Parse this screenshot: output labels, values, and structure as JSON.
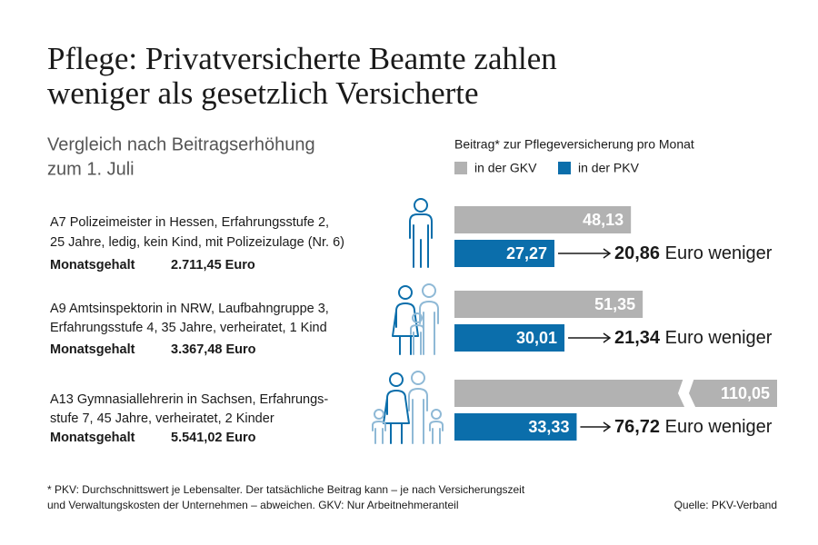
{
  "chart_data": {
    "type": "bar",
    "orientation": "horizontal",
    "title": [
      "Pflege: Privatversicherte Beamte zahlen",
      "weniger als gesetzlich Versicherte"
    ],
    "subtitle": [
      "Vergleich nach Beitragserhöhung",
      "zum 1. Juli"
    ],
    "legend_title": "Beitrag* zur Pflegeversicherung pro Monat",
    "categories": [
      [
        "A7 Polizeimeister in Hessen, Erfahrungsstufe 2,",
        "25 Jahre, ledig, kein Kind, mit Polizeizulage (Nr. 6)"
      ],
      [
        "A9 Amtsinspektorin in NRW, Laufbahngruppe 3,",
        "Erfahrungsstufe 4, 35 Jahre, verheiratet, 1 Kind"
      ],
      [
        "A13 Gymnasiallehrerin in Sachsen, Erfahrungs-",
        "stufe 7, 45 Jahre, verheiratet, 2 Kinder"
      ]
    ],
    "salary_label": "Monatsgehalt",
    "salaries": [
      "2.711,45 Euro",
      "3.367,48 Euro",
      "5.541,02 Euro"
    ],
    "differences": [
      "20,86",
      "21,34",
      "76,72"
    ],
    "difference_suffix": "Euro weniger",
    "series": [
      {
        "name": "in der GKV",
        "color": "#b2b2b2",
        "values": [
          48.13,
          51.35,
          110.05
        ],
        "value_labels": [
          "48,13",
          "51,35",
          "110,05"
        ]
      },
      {
        "name": "in der PKV",
        "color": "#0b6eab",
        "values": [
          27.27,
          30.01,
          33.33
        ],
        "value_labels": [
          "27,27",
          "30,01",
          "33,33"
        ]
      }
    ],
    "xlim": [
      0,
      88
    ],
    "axis_break": true,
    "footnote": [
      "* PKV: Durchschnittswert je Lebensalter. Der tatsächliche Beitrag kann – je nach Versicherungszeit",
      "und Verwaltungskosten der Unternehmen – abweichen. GKV: Nur Arbeitnehmeranteil"
    ],
    "source": "Quelle: PKV-Verband"
  }
}
